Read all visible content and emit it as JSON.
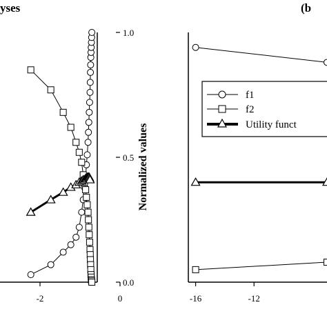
{
  "left_title": "yses",
  "right_title": "(b",
  "chart_data": [
    {
      "type": "line",
      "title": "",
      "xlabel": "",
      "ylabel": "Normalized values",
      "xlim": [
        -3,
        0
      ],
      "ylim": [
        0,
        1
      ],
      "x_ticks": [
        -2,
        0
      ],
      "x_tick_labels": [
        "-2",
        "0"
      ],
      "y_ticks": [
        0,
        0.5,
        1
      ],
      "y_tick_labels": [
        "0.0",
        "0.5",
        "1.0"
      ],
      "series": [
        {
          "name": "f1",
          "marker": "circle",
          "x": [
            -2.23,
            -1.73,
            -1.42,
            -1.23,
            -1.1,
            -1.02,
            -0.96,
            -0.92,
            -0.89,
            -0.86,
            -0.84,
            -0.82,
            -0.8,
            -0.79,
            -0.78,
            -0.77,
            -0.76,
            -0.75,
            -0.745,
            -0.74,
            -0.735,
            -0.73,
            -0.725,
            -0.72,
            -0.715,
            -0.71,
            -0.705
          ],
          "y": [
            0.03,
            0.07,
            0.12,
            0.15,
            0.18,
            0.22,
            0.28,
            0.33,
            0.38,
            0.42,
            0.47,
            0.51,
            0.56,
            0.6,
            0.64,
            0.68,
            0.72,
            0.76,
            0.8,
            0.84,
            0.87,
            0.9,
            0.92,
            0.94,
            0.96,
            0.98,
            1.0
          ]
        },
        {
          "name": "f2",
          "marker": "square",
          "x": [
            -2.23,
            -1.73,
            -1.42,
            -1.23,
            -1.1,
            -1.02,
            -0.96,
            -0.92,
            -0.89,
            -0.86,
            -0.84,
            -0.82,
            -0.8,
            -0.79,
            -0.78,
            -0.77,
            -0.76,
            -0.75,
            -0.745,
            -0.74,
            -0.735,
            -0.73,
            -0.725,
            -0.72,
            -0.715,
            -0.71,
            -0.705
          ],
          "y": [
            0.85,
            0.77,
            0.68,
            0.62,
            0.56,
            0.52,
            0.48,
            0.43,
            0.4,
            0.37,
            0.34,
            0.31,
            0.28,
            0.25,
            0.22,
            0.19,
            0.16,
            0.13,
            0.11,
            0.09,
            0.07,
            0.05,
            0.03,
            0.02,
            0.01,
            0.005,
            0.0
          ]
        },
        {
          "name": "Utility funct",
          "marker": "triangle",
          "x": [
            -2.23,
            -1.73,
            -1.42,
            -1.23,
            -1.1,
            -1.02,
            -0.96,
            -0.92,
            -0.89,
            -0.86,
            -0.84,
            -0.82,
            -0.8,
            -0.79,
            -0.78,
            -0.77,
            -0.76,
            -0.75
          ],
          "y": [
            0.28,
            0.33,
            0.36,
            0.38,
            0.39,
            0.4,
            0.405,
            0.41,
            0.41,
            0.415,
            0.415,
            0.42,
            0.42,
            0.42,
            0.42,
            0.42,
            0.415,
            0.41
          ]
        }
      ]
    },
    {
      "type": "line",
      "title": "",
      "xlabel": "",
      "ylabel": "",
      "xlim": [
        -16.5,
        -7
      ],
      "ylim": [
        0,
        1
      ],
      "x_ticks": [
        -16,
        -12
      ],
      "x_tick_labels": [
        "-16",
        "-12"
      ],
      "legend": {
        "placement": "top-left",
        "entries": [
          "f1",
          "f2",
          "Utility funct"
        ]
      },
      "series": [
        {
          "name": "f1",
          "marker": "circle",
          "x": [
            -16,
            -7
          ],
          "y": [
            0.94,
            0.88
          ]
        },
        {
          "name": "f2",
          "marker": "square",
          "x": [
            -16,
            -7
          ],
          "y": [
            0.05,
            0.08
          ]
        },
        {
          "name": "Utility funct",
          "marker": "triangle",
          "x": [
            -16,
            -7
          ],
          "y": [
            0.4,
            0.4
          ]
        }
      ]
    }
  ]
}
